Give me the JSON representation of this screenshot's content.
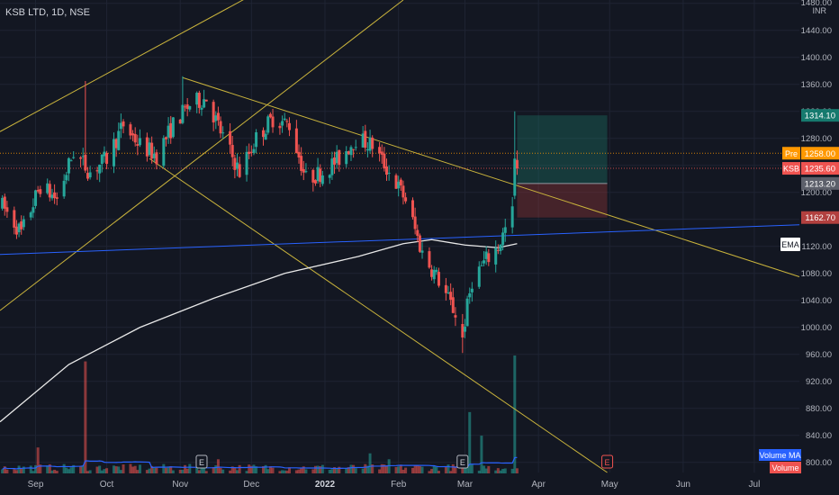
{
  "header": {
    "symbol_label": "KSB LTD, 1D, NSE"
  },
  "axis": {
    "currency": "INR"
  },
  "colors": {
    "background": "#131722",
    "grid": "#1f2433",
    "up": "#26a69a",
    "down": "#ef5350",
    "trendline": "#c9b33c",
    "horizontal_line": "#2962ff",
    "ema": "#e8e8e8",
    "volume_ma": "#2962ff"
  },
  "chart_data": {
    "type": "candlestick",
    "y_range": [
      785,
      1485
    ],
    "y_ticks": [
      800,
      840,
      880,
      920,
      960,
      1000,
      1040,
      1080,
      1120,
      1160,
      1200,
      1240,
      1280,
      1320,
      1360,
      1400,
      1440,
      1480
    ],
    "x_range": [
      "2021-08-17",
      "2022-07-20"
    ],
    "x_ticks": [
      {
        "label": "Sep",
        "date": "2021-09-01"
      },
      {
        "label": "Oct",
        "date": "2021-10-01"
      },
      {
        "label": "Nov",
        "date": "2021-11-01"
      },
      {
        "label": "Dec",
        "date": "2021-12-01"
      },
      {
        "label": "2022",
        "date": "2022-01-01"
      },
      {
        "label": "Feb",
        "date": "2022-02-01"
      },
      {
        "label": "Mar",
        "date": "2022-03-01"
      },
      {
        "label": "Apr",
        "date": "2022-04-01"
      },
      {
        "label": "May",
        "date": "2022-05-01"
      },
      {
        "label": "Jun",
        "date": "2022-06-01"
      },
      {
        "label": "Jul",
        "date": "2022-07-01"
      }
    ],
    "anchors": [
      {
        "date": "2021-08-18",
        "price": 1180
      },
      {
        "date": "2021-08-26",
        "price": 1140
      },
      {
        "date": "2021-09-03",
        "price": 1210
      },
      {
        "date": "2021-09-10",
        "price": 1190
      },
      {
        "date": "2021-09-17",
        "price": 1260
      },
      {
        "date": "2021-09-24",
        "price": 1230
      },
      {
        "date": "2021-10-01",
        "price": 1250
      },
      {
        "date": "2021-10-08",
        "price": 1300
      },
      {
        "date": "2021-10-15",
        "price": 1270
      },
      {
        "date": "2021-10-22",
        "price": 1255
      },
      {
        "date": "2021-10-29",
        "price": 1300
      },
      {
        "date": "2021-11-05",
        "price": 1330
      },
      {
        "date": "2021-11-12",
        "price": 1340
      },
      {
        "date": "2021-11-18",
        "price": 1290
      },
      {
        "date": "2021-11-26",
        "price": 1230
      },
      {
        "date": "2021-12-03",
        "price": 1280
      },
      {
        "date": "2021-12-10",
        "price": 1310
      },
      {
        "date": "2021-12-17",
        "price": 1300
      },
      {
        "date": "2021-12-24",
        "price": 1220
      },
      {
        "date": "2021-12-31",
        "price": 1230
      },
      {
        "date": "2022-01-07",
        "price": 1250
      },
      {
        "date": "2022-01-14",
        "price": 1280
      },
      {
        "date": "2022-01-21",
        "price": 1270
      },
      {
        "date": "2022-01-28",
        "price": 1230
      },
      {
        "date": "2022-02-04",
        "price": 1190
      },
      {
        "date": "2022-02-11",
        "price": 1110
      },
      {
        "date": "2022-02-18",
        "price": 1070
      },
      {
        "date": "2022-02-25",
        "price": 1020
      },
      {
        "date": "2022-02-28",
        "price": 990
      },
      {
        "date": "2022-03-04",
        "price": 1070
      },
      {
        "date": "2022-03-10",
        "price": 1100
      },
      {
        "date": "2022-03-15",
        "price": 1120
      },
      {
        "date": "2022-03-21",
        "price": 1170
      },
      {
        "date": "2022-03-23",
        "price": 1235.6
      }
    ],
    "lines": [
      {
        "name": "trend-descending-main",
        "kind": "trend",
        "from": {
          "date": "2021-11-02",
          "price": 1370
        },
        "to": {
          "date": "2022-07-20",
          "price": 1075
        }
      },
      {
        "name": "trend-ascending-upper",
        "kind": "trend",
        "from": {
          "date": "2021-08-17",
          "price": 1290
        },
        "to": {
          "date": "2021-11-30",
          "price": 1490
        }
      },
      {
        "name": "trend-ascending-lower",
        "kind": "trend",
        "from": {
          "date": "2021-08-17",
          "price": 1025
        },
        "to": {
          "date": "2022-02-03",
          "price": 1485
        }
      },
      {
        "name": "trend-descending-lower",
        "kind": "trend",
        "from": {
          "date": "2021-10-19",
          "price": 1250
        },
        "to": {
          "date": "2022-04-30",
          "price": 785
        }
      },
      {
        "name": "support-blue-line",
        "kind": "horizontal",
        "from": {
          "date": "2021-08-17",
          "price": 1108
        },
        "to": {
          "date": "2022-07-20",
          "price": 1152
        }
      }
    ],
    "ema": [
      {
        "date": "2021-08-17",
        "price": 860
      },
      {
        "date": "2021-09-15",
        "price": 945
      },
      {
        "date": "2021-10-15",
        "price": 1000
      },
      {
        "date": "2021-11-15",
        "price": 1043
      },
      {
        "date": "2021-12-15",
        "price": 1080
      },
      {
        "date": "2022-01-15",
        "price": 1105
      },
      {
        "date": "2022-02-03",
        "price": 1124
      },
      {
        "date": "2022-02-15",
        "price": 1130
      },
      {
        "date": "2022-03-01",
        "price": 1122
      },
      {
        "date": "2022-03-15",
        "price": 1118
      },
      {
        "date": "2022-03-23",
        "price": 1124
      }
    ],
    "position": {
      "start": "2022-03-23",
      "end": "2022-04-30",
      "entry": 1213.2,
      "target": 1314.1,
      "stop": 1162.7
    },
    "volume": {
      "max_height_fraction_of_pane": 1.0,
      "spikes": [
        {
          "date": "2021-09-02",
          "value": 0.22
        },
        {
          "date": "2021-09-22",
          "value": 0.95
        },
        {
          "date": "2021-11-17",
          "value": 0.12
        },
        {
          "date": "2022-01-20",
          "value": 0.17
        },
        {
          "date": "2022-01-28",
          "value": 0.12
        },
        {
          "date": "2022-03-03",
          "value": 0.52
        },
        {
          "date": "2022-03-08",
          "value": 0.32
        },
        {
          "date": "2022-03-22",
          "value": 1.0
        }
      ]
    },
    "events": [
      {
        "date": "2021-11-10",
        "label": "E"
      },
      {
        "date": "2022-02-28",
        "label": "E"
      },
      {
        "date": "2022-04-30",
        "label": "E"
      }
    ],
    "price_labels": [
      {
        "kind": "tick",
        "text": "1480.00",
        "price": 1480
      },
      {
        "kind": "plain",
        "text": "1314.10",
        "price": 1314.1,
        "bg": "#167a6e",
        "fg": "#ffffff"
      },
      {
        "kind": "tagged",
        "tag": "Pre",
        "text": "1258.00",
        "price": 1258,
        "bg": "#ff9800",
        "fg": "#ffffff"
      },
      {
        "kind": "tagged",
        "tag": "KSB",
        "text": "1235.60",
        "price": 1235.6,
        "bg": "#ef5350",
        "fg": "#ffffff"
      },
      {
        "kind": "plain",
        "text": "1213.20",
        "price": 1213.2,
        "bg": "#5d606b",
        "fg": "#ffffff"
      },
      {
        "kind": "plain",
        "text": "1162.70",
        "price": 1162.7,
        "bg": "#b2403f",
        "fg": "#ffffff"
      }
    ],
    "legend": {
      "ema_label": "EMA",
      "volume_ma_label": "Volume MA",
      "volume_label": "Volume"
    }
  }
}
